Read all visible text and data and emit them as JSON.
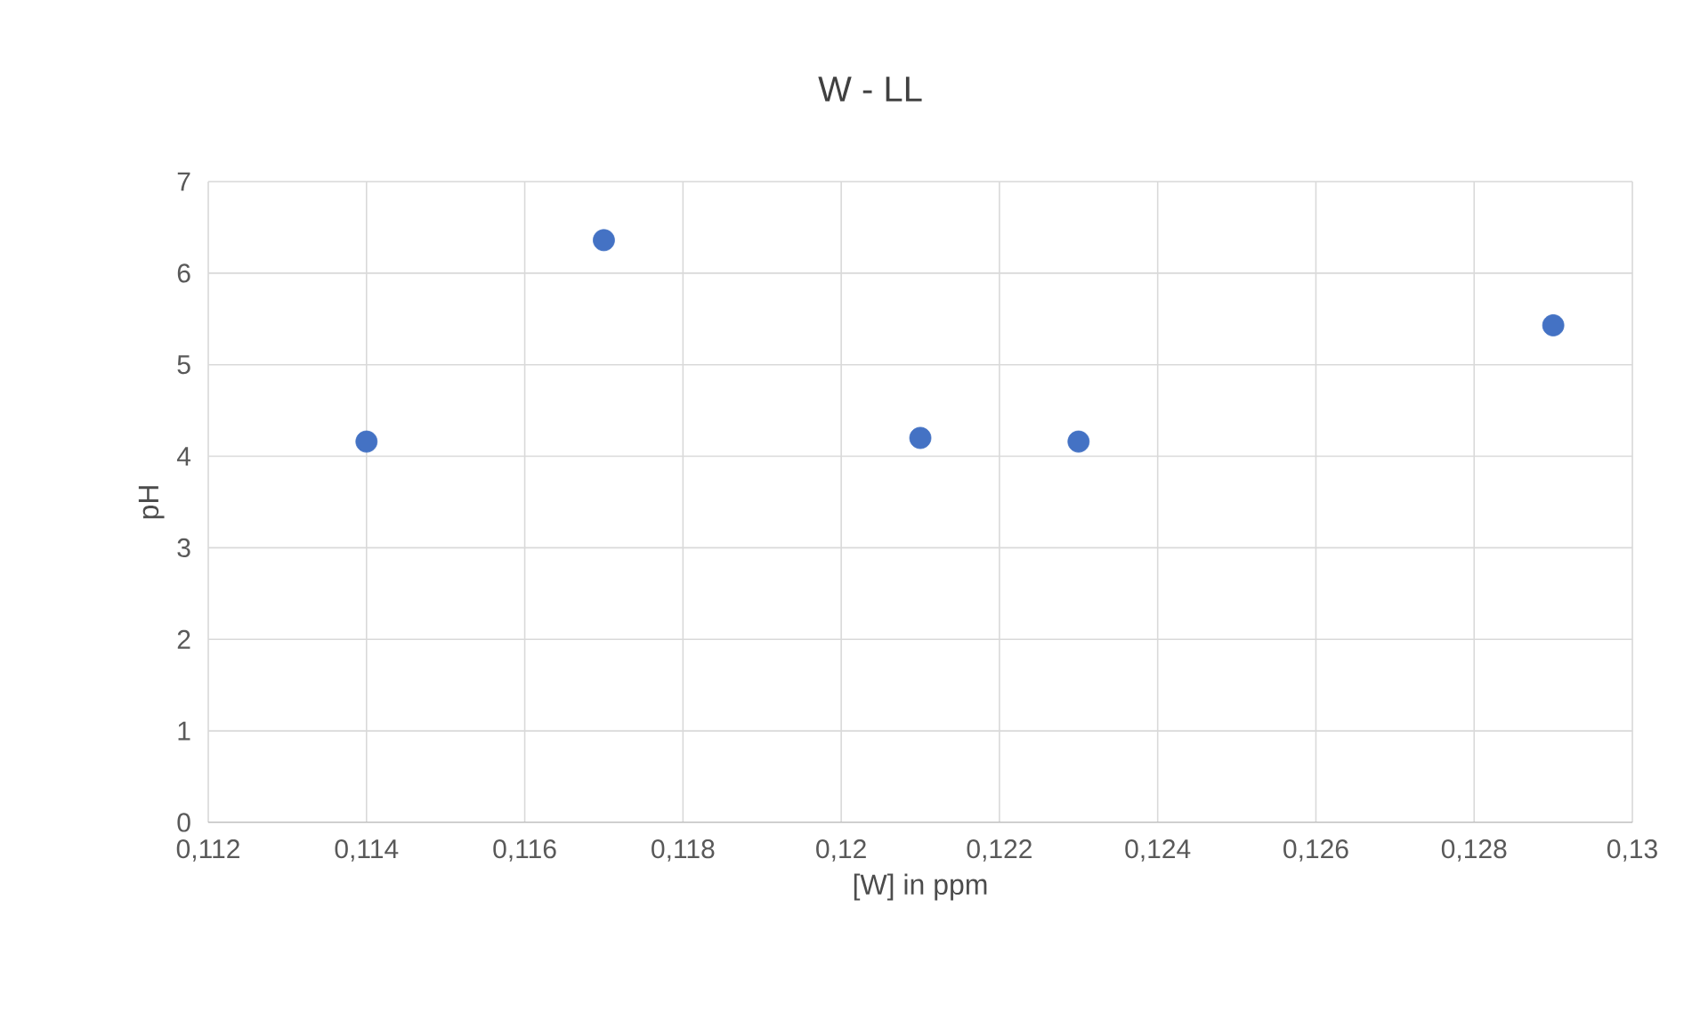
{
  "chart_data": {
    "type": "scatter",
    "title": "W - LL",
    "xlabel": "[W] in ppm",
    "ylabel": "pH",
    "x": [
      0.114,
      0.117,
      0.121,
      0.123,
      0.129
    ],
    "values": [
      4.16,
      6.36,
      4.2,
      4.16,
      5.43
    ],
    "color": "#4472c4",
    "xlim": [
      0.112,
      0.13
    ],
    "xticks": [
      {
        "value": 0.112,
        "label": "0,112"
      },
      {
        "value": 0.114,
        "label": "0,114"
      },
      {
        "value": 0.116,
        "label": "0,116"
      },
      {
        "value": 0.118,
        "label": "0,118"
      },
      {
        "value": 0.12,
        "label": "0,12"
      },
      {
        "value": 0.122,
        "label": "0,122"
      },
      {
        "value": 0.124,
        "label": "0,124"
      },
      {
        "value": 0.126,
        "label": "0,126"
      },
      {
        "value": 0.128,
        "label": "0,128"
      },
      {
        "value": 0.13,
        "label": "0,13"
      }
    ],
    "ylim": [
      0,
      7
    ],
    "yticks": [
      0,
      1,
      2,
      3,
      4,
      5,
      6,
      7
    ],
    "grid": true
  }
}
